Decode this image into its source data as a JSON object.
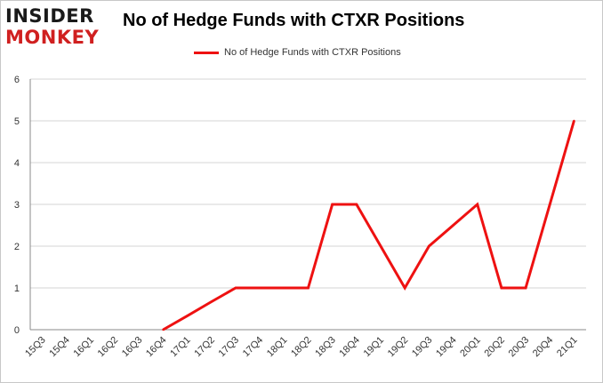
{
  "brand": {
    "line1": "INSIDER",
    "line2": "MONKEY"
  },
  "colors": {
    "series": "#ee1111",
    "grid": "#d4d4d4",
    "axis": "#888888",
    "brand_red": "#d02020"
  },
  "chart_data": {
    "type": "line",
    "title": "No of Hedge Funds with CTXR Positions",
    "xlabel": "",
    "ylabel": "",
    "ylim": [
      0,
      6
    ],
    "yticks": [
      0,
      1,
      2,
      3,
      4,
      5,
      6
    ],
    "grid": true,
    "legend_position": "top-center",
    "categories": [
      "15Q3",
      "15Q4",
      "16Q1",
      "16Q2",
      "16Q3",
      "16Q4",
      "17Q1",
      "17Q2",
      "17Q3",
      "17Q4",
      "18Q1",
      "18Q2",
      "18Q3",
      "18Q4",
      "19Q1",
      "19Q2",
      "19Q3",
      "19Q4",
      "20Q1",
      "20Q2",
      "20Q3",
      "20Q4",
      "21Q1"
    ],
    "series": [
      {
        "name": "No of Hedge Funds with CTXR Positions",
        "values": [
          null,
          null,
          null,
          null,
          null,
          0,
          0.33,
          0.67,
          1,
          1,
          1,
          1,
          3,
          3,
          2,
          1,
          2,
          2.5,
          3,
          1,
          1,
          3,
          5
        ]
      }
    ]
  }
}
